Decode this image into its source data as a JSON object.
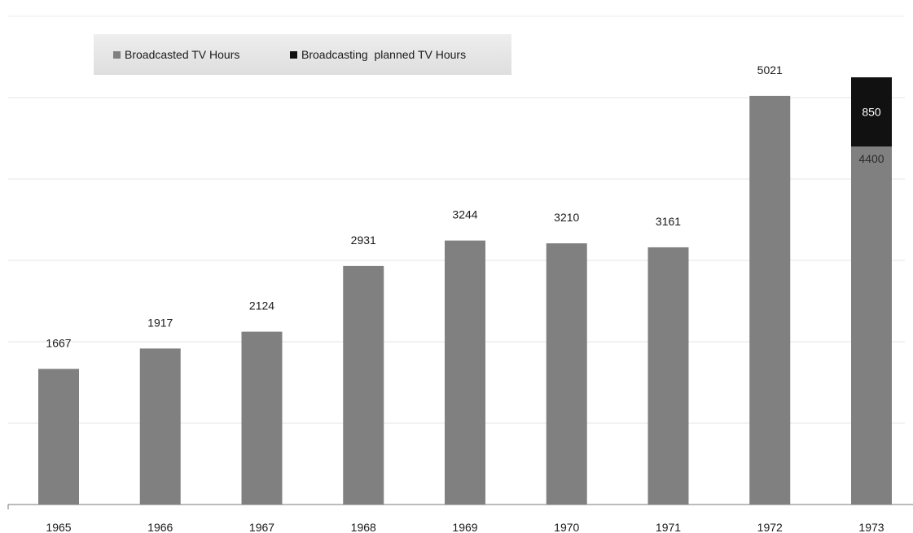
{
  "chart_data": {
    "type": "bar",
    "stacked": true,
    "categories": [
      "1965",
      "1966",
      "1967",
      "1968",
      "1969",
      "1970",
      "1971",
      "1972",
      "1973"
    ],
    "series": [
      {
        "name": "Broadcasted TV Hours",
        "color": "#808080",
        "values": [
          1667,
          1917,
          2124,
          2931,
          3244,
          3210,
          3161,
          5021,
          4400
        ],
        "labels": [
          "1667",
          "1917",
          "2124",
          "2931",
          "3244",
          "3210",
          "3161",
          "5021",
          "4400"
        ]
      },
      {
        "name": "Broadcasting  planned TV Hours",
        "color": "#111111",
        "values": [
          0,
          0,
          0,
          0,
          0,
          0,
          0,
          0,
          850
        ],
        "labels": [
          "",
          "",
          "",
          "",
          "",
          "",
          "",
          "",
          "850"
        ]
      }
    ],
    "title": "",
    "xlabel": "",
    "ylabel": "",
    "ylim": [
      0,
      5000
    ],
    "grid": true,
    "legend_position": "top-left"
  }
}
